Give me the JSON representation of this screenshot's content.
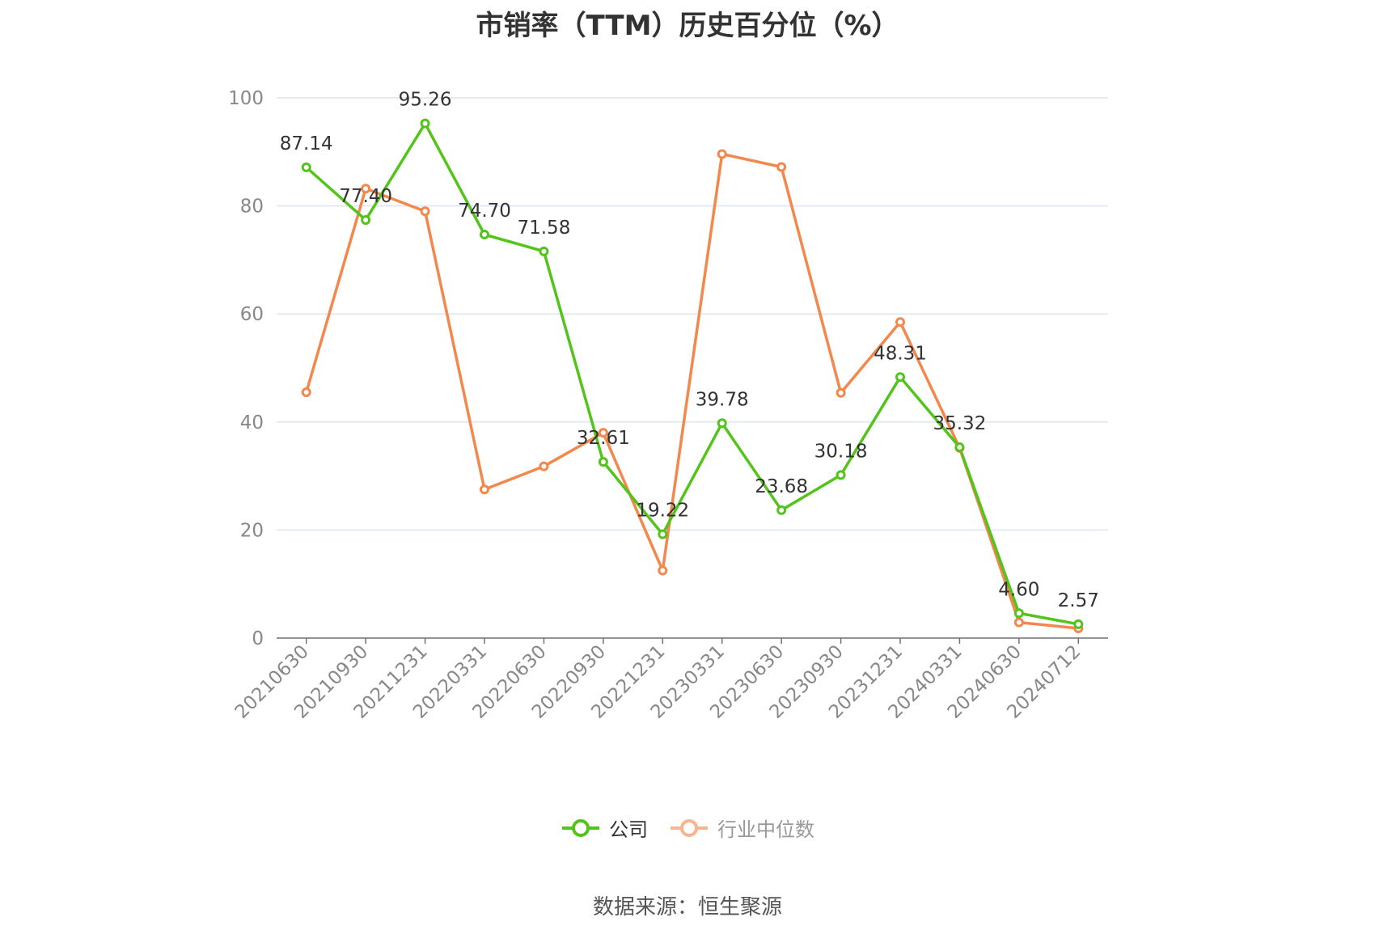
{
  "title": "市销率（TTM）历史百分位（%）",
  "source": "数据来源：恒生聚源",
  "chart_data": {
    "type": "line",
    "title": "市销率（TTM）历史百分位（%）",
    "categories": [
      "20210630",
      "20210930",
      "20211231",
      "20220331",
      "20220630",
      "20220930",
      "20221231",
      "20230331",
      "20230630",
      "20230930",
      "20231231",
      "20240331",
      "20240630",
      "20240712"
    ],
    "yticks": [
      "0",
      "20",
      "40",
      "60",
      "80",
      "100"
    ],
    "ylim": [
      0,
      100
    ],
    "grid": true,
    "legend_position": "bottom",
    "series": [
      {
        "name": "公司",
        "color": "#52c41a",
        "values": [
          87.14,
          77.4,
          95.26,
          74.7,
          71.58,
          32.61,
          19.22,
          39.78,
          23.68,
          30.18,
          48.31,
          35.32,
          4.6,
          2.57
        ],
        "labels": [
          "87.14",
          "77.40",
          "95.26",
          "74.70",
          "71.58",
          "32.61",
          "19.22",
          "39.78",
          "23.68",
          "30.18",
          "48.31",
          "35.32",
          "4.60",
          "2.57"
        ]
      },
      {
        "name": "行业中位数",
        "color": "#f4874b",
        "values": [
          45.5,
          83.2,
          79.0,
          27.5,
          31.8,
          38.0,
          12.5,
          89.6,
          87.2,
          45.4,
          58.5,
          35.2,
          2.9,
          1.8
        ]
      }
    ]
  }
}
